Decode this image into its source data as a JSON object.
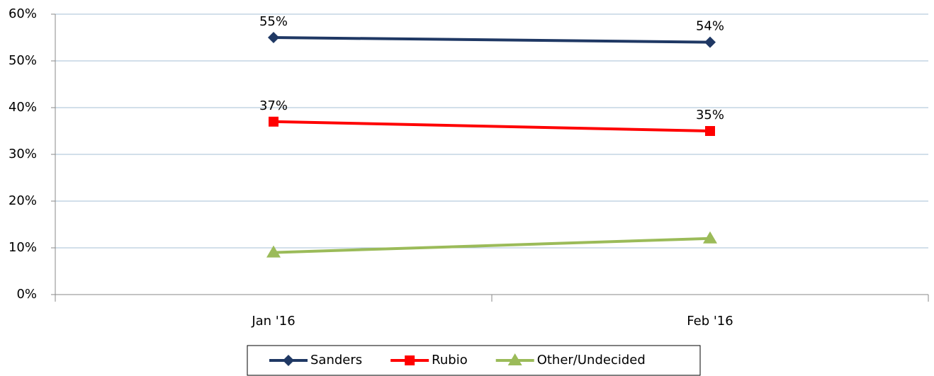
{
  "chart_data": {
    "type": "line",
    "categories": [
      "Jan '16",
      "Feb '16"
    ],
    "series": [
      {
        "name": "Sanders",
        "color": "#1f3864",
        "marker": "diamond",
        "values": [
          55,
          54
        ],
        "value_labels": [
          "55%",
          "54%"
        ]
      },
      {
        "name": "Rubio",
        "color": "#ff0000",
        "marker": "square",
        "values": [
          37,
          35
        ],
        "value_labels": [
          "37%",
          "35%"
        ]
      },
      {
        "name": "Other/Undecided",
        "color": "#9bbb59",
        "marker": "triangle",
        "values": [
          9,
          12
        ]
      }
    ],
    "ylim": [
      0,
      60
    ],
    "yticks": [
      {
        "value": 0,
        "label": "0%"
      },
      {
        "value": 10,
        "label": "10%"
      },
      {
        "value": 20,
        "label": "20%"
      },
      {
        "value": 30,
        "label": "30%"
      },
      {
        "value": 40,
        "label": "40%"
      },
      {
        "value": 50,
        "label": "50%"
      },
      {
        "value": 60,
        "label": "60%"
      }
    ],
    "grid": true,
    "legend": "bottom"
  }
}
